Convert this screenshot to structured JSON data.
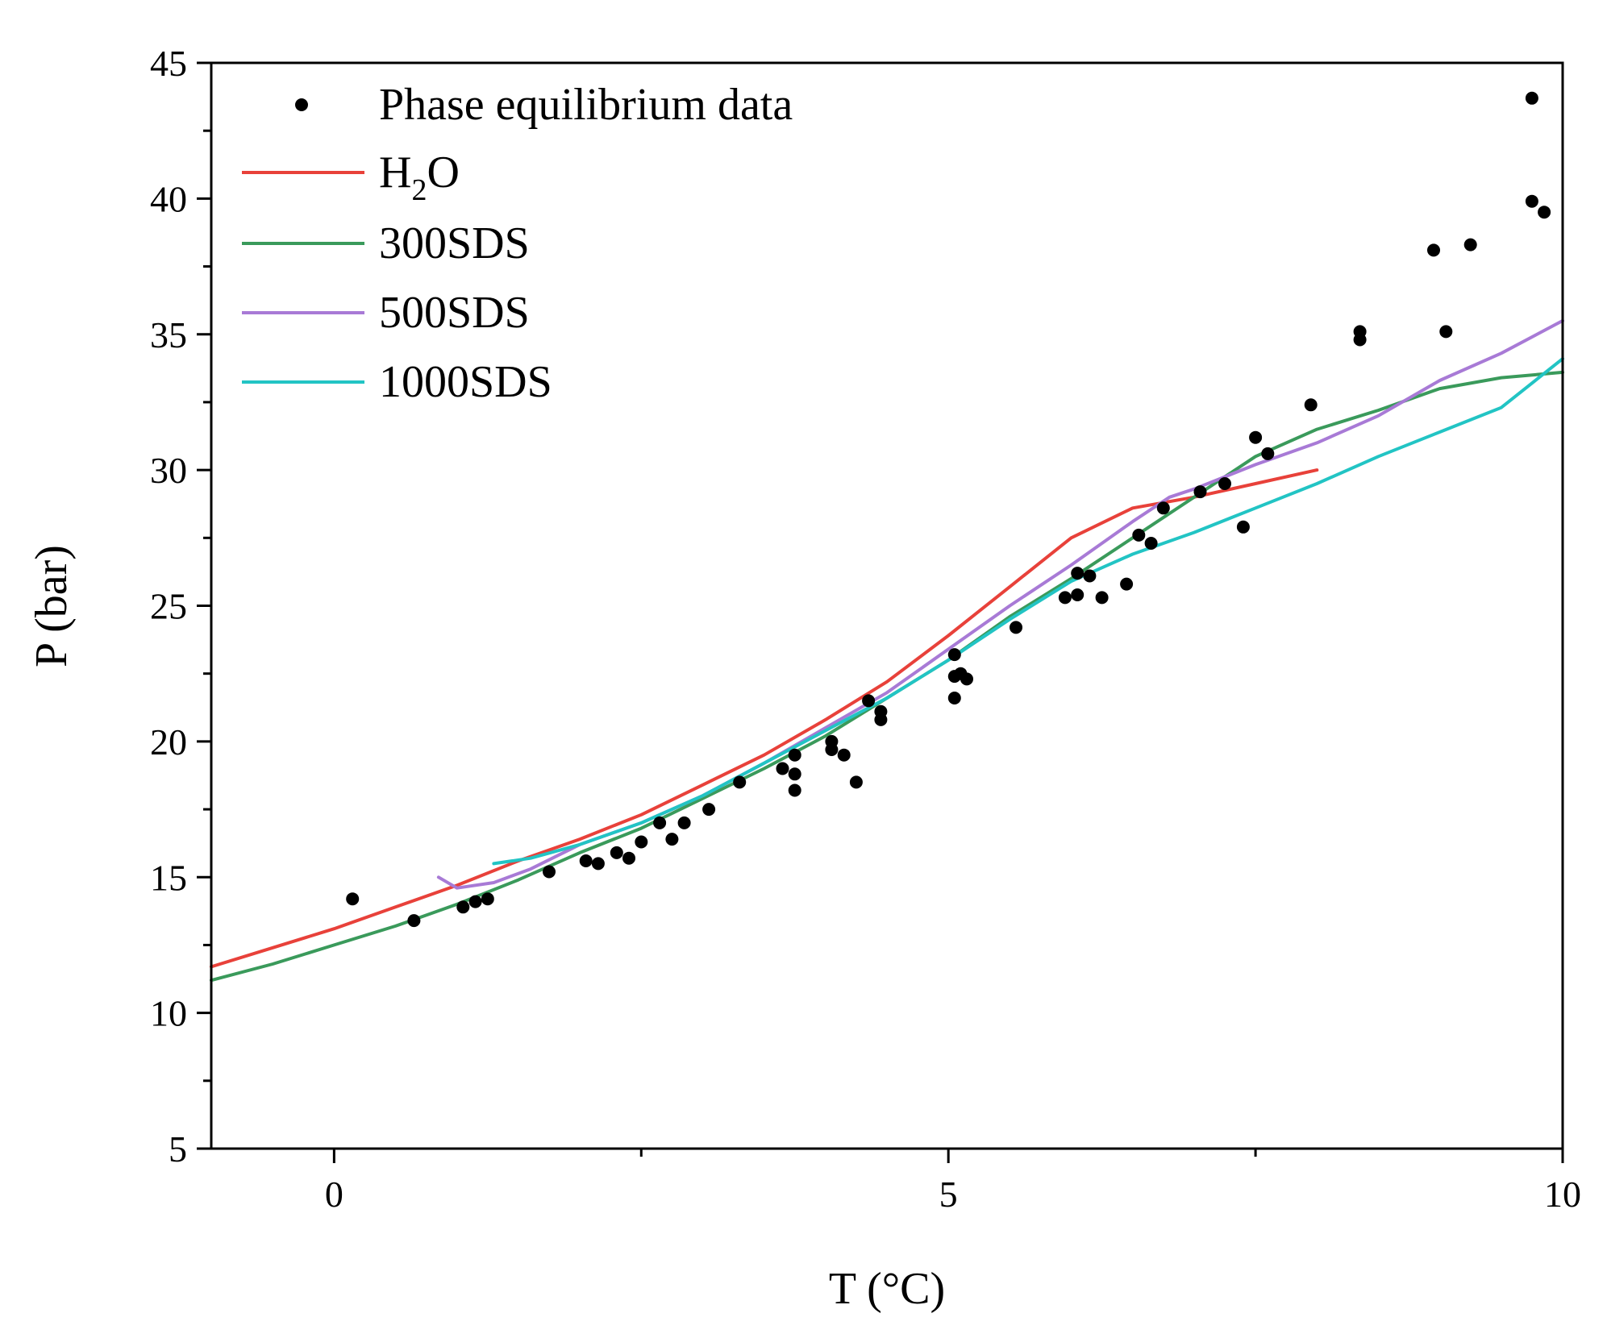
{
  "chart_data": {
    "type": "line",
    "title": "",
    "xlabel": "T (°C)",
    "ylabel": "P (bar)",
    "xlim": [
      -1,
      10
    ],
    "ylim": [
      5,
      45
    ],
    "xticks": [
      0,
      5,
      10
    ],
    "xtick_labels": [
      "0",
      "5",
      "10"
    ],
    "yticks": [
      5,
      10,
      15,
      20,
      25,
      30,
      35,
      40,
      45
    ],
    "ytick_labels": [
      "5",
      "10",
      "15",
      "20",
      "25",
      "30",
      "35",
      "40",
      "45"
    ],
    "grid": false,
    "legend_position": "top-left",
    "legend": [
      {
        "label": "Phase equilibrium data",
        "kind": "marker"
      },
      {
        "label_main": "H",
        "label_sub": "2",
        "label_tail": "O",
        "kind": "line"
      },
      {
        "label": "300SDS",
        "kind": "line"
      },
      {
        "label": "500SDS",
        "kind": "line"
      },
      {
        "label": "1000SDS",
        "kind": "line"
      }
    ],
    "scatter": {
      "name": "Phase equilibrium data",
      "color": "#000000",
      "points": [
        [
          0.15,
          14.2
        ],
        [
          0.65,
          13.4
        ],
        [
          1.05,
          13.9
        ],
        [
          1.15,
          14.1
        ],
        [
          1.25,
          14.2
        ],
        [
          1.75,
          15.2
        ],
        [
          2.05,
          15.6
        ],
        [
          2.15,
          15.5
        ],
        [
          2.3,
          15.9
        ],
        [
          2.4,
          15.7
        ],
        [
          2.5,
          16.3
        ],
        [
          2.65,
          17.0
        ],
        [
          2.75,
          16.4
        ],
        [
          2.85,
          17.0
        ],
        [
          3.05,
          17.5
        ],
        [
          3.3,
          18.5
        ],
        [
          3.65,
          19.0
        ],
        [
          3.75,
          18.2
        ],
        [
          3.75,
          18.8
        ],
        [
          3.75,
          19.5
        ],
        [
          4.05,
          19.7
        ],
        [
          4.05,
          20.0
        ],
        [
          4.15,
          19.5
        ],
        [
          4.25,
          18.5
        ],
        [
          4.35,
          21.5
        ],
        [
          4.45,
          20.8
        ],
        [
          4.45,
          21.1
        ],
        [
          5.05,
          21.6
        ],
        [
          5.05,
          22.4
        ],
        [
          5.1,
          22.5
        ],
        [
          5.15,
          22.3
        ],
        [
          5.05,
          23.2
        ],
        [
          5.55,
          24.2
        ],
        [
          5.95,
          25.3
        ],
        [
          6.05,
          25.4
        ],
        [
          6.05,
          26.2
        ],
        [
          6.15,
          26.1
        ],
        [
          6.25,
          25.3
        ],
        [
          6.45,
          25.8
        ],
        [
          6.55,
          27.6
        ],
        [
          6.65,
          27.3
        ],
        [
          6.75,
          28.6
        ],
        [
          7.05,
          29.2
        ],
        [
          7.25,
          29.5
        ],
        [
          7.4,
          27.9
        ],
        [
          7.5,
          31.2
        ],
        [
          7.6,
          30.6
        ],
        [
          7.95,
          32.4
        ],
        [
          8.35,
          34.8
        ],
        [
          8.35,
          35.1
        ],
        [
          8.95,
          38.1
        ],
        [
          9.05,
          35.1
        ],
        [
          9.25,
          38.3
        ],
        [
          9.75,
          43.7
        ],
        [
          9.75,
          39.9
        ],
        [
          9.85,
          39.5
        ]
      ]
    },
    "series": [
      {
        "name": "H2O",
        "color": "#e8413a",
        "x": [
          -1.0,
          -0.5,
          0.0,
          0.5,
          1.0,
          1.5,
          2.0,
          2.5,
          3.0,
          3.5,
          4.0,
          4.5,
          5.0,
          5.5,
          6.0,
          6.5,
          7.0,
          7.5,
          8.0
        ],
        "y": [
          11.7,
          12.4,
          13.1,
          13.9,
          14.7,
          15.6,
          16.4,
          17.3,
          18.4,
          19.5,
          20.8,
          22.2,
          23.9,
          25.7,
          27.5,
          28.6,
          29.0,
          29.5,
          30.0
        ]
      },
      {
        "name": "300SDS",
        "color": "#3a9a5b",
        "x": [
          -1.0,
          -0.5,
          0.0,
          0.5,
          1.0,
          1.5,
          2.0,
          2.5,
          3.0,
          3.5,
          4.0,
          4.5,
          5.0,
          5.5,
          6.0,
          6.5,
          7.0,
          7.5,
          8.0,
          8.5,
          9.0,
          9.5,
          10.0
        ],
        "y": [
          11.2,
          11.8,
          12.5,
          13.2,
          14.0,
          14.9,
          15.9,
          16.8,
          17.9,
          19.0,
          20.2,
          21.6,
          23.0,
          24.6,
          26.0,
          27.5,
          29.0,
          30.5,
          31.5,
          32.2,
          33.0,
          33.4,
          33.6
        ]
      },
      {
        "name": "500SDS",
        "color": "#a87ad6",
        "x": [
          0.85,
          1.0,
          1.3,
          1.6,
          2.0,
          2.5,
          3.0,
          3.5,
          4.0,
          4.5,
          5.0,
          5.5,
          6.0,
          6.5,
          6.8,
          7.0,
          7.5,
          8.0,
          8.5,
          9.0,
          9.5,
          10.0
        ],
        "y": [
          15.0,
          14.6,
          14.8,
          15.3,
          16.2,
          17.0,
          18.0,
          19.2,
          20.5,
          21.8,
          23.4,
          25.0,
          26.5,
          28.1,
          29.0,
          29.3,
          30.2,
          31.0,
          32.0,
          33.3,
          34.3,
          35.5
        ]
      },
      {
        "name": "1000SDS",
        "color": "#22c4c4",
        "x": [
          1.3,
          1.6,
          2.0,
          2.5,
          3.0,
          3.5,
          4.0,
          4.5,
          5.0,
          5.5,
          6.0,
          6.5,
          7.0,
          7.5,
          8.0,
          8.5,
          9.0,
          9.5,
          10.0
        ],
        "y": [
          15.5,
          15.7,
          16.2,
          17.0,
          18.0,
          19.2,
          20.4,
          21.6,
          23.0,
          24.5,
          25.9,
          26.9,
          27.7,
          28.6,
          29.5,
          30.5,
          31.4,
          32.3,
          34.1
        ]
      }
    ]
  }
}
